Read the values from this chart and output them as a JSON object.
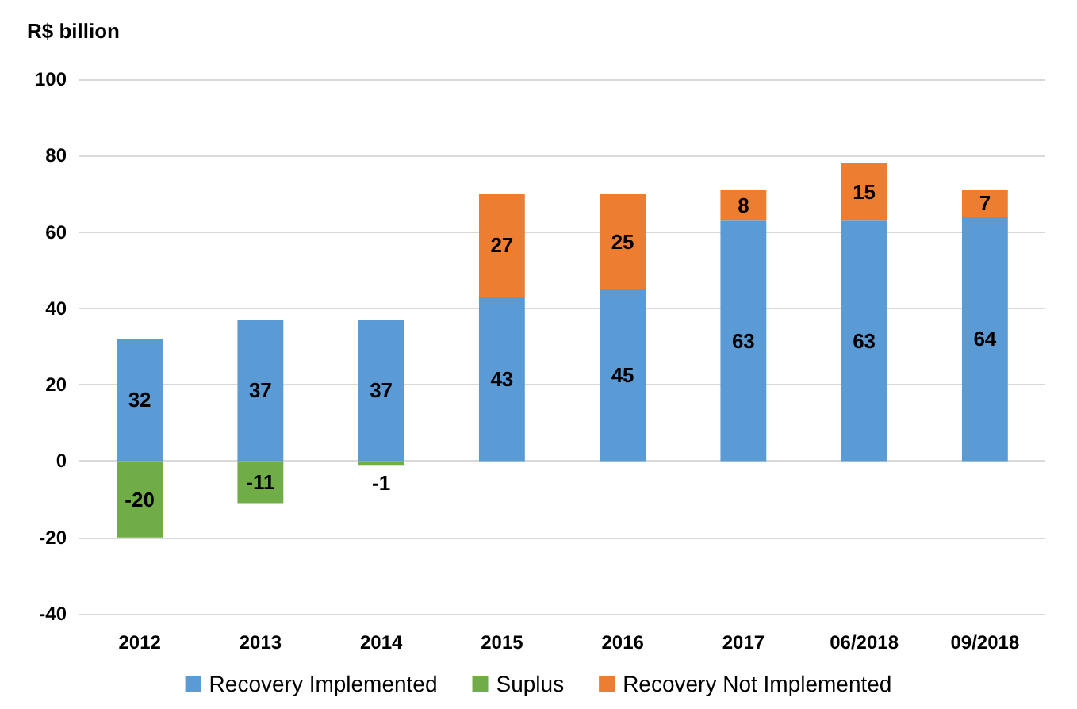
{
  "chart_data": {
    "type": "bar",
    "ylabel": "R$ billion",
    "stacked": true,
    "data_labels": true,
    "grid": "y",
    "legend": "bottom",
    "categories": [
      "2012",
      "2013",
      "2014",
      "2015",
      "2016",
      "2017",
      "06/2018",
      "09/2018"
    ],
    "ylim": [
      -40,
      100
    ],
    "yticks": [
      -40,
      -20,
      0,
      20,
      40,
      60,
      80,
      100
    ],
    "series": [
      {
        "name": "Recovery Implemented",
        "color": "#5b9bd5",
        "values": [
          32,
          37,
          37,
          43,
          45,
          63,
          63,
          64
        ]
      },
      {
        "name": "Suplus",
        "color": "#70ad47",
        "values": [
          -20,
          -11,
          -1,
          null,
          null,
          null,
          null,
          null
        ]
      },
      {
        "name": "Recovery Not Implemented",
        "color": "#ed7d31",
        "values": [
          null,
          null,
          null,
          27,
          25,
          8,
          15,
          7
        ]
      }
    ]
  }
}
